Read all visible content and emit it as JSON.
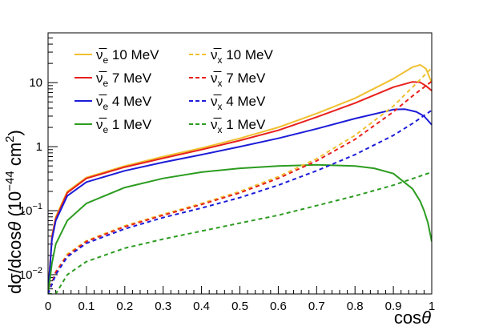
{
  "chart_data": {
    "type": "line",
    "xlabel": "cosθ",
    "ylabel": "dσ/dcosθ (10⁻⁴⁴ cm²)",
    "xlim": [
      0,
      1
    ],
    "ylim": [
      0.005,
      60
    ],
    "y_scale": "log",
    "grid": false,
    "legend_position": "top-left",
    "x_ticks": [
      0,
      0.1,
      0.2,
      0.3,
      0.4,
      0.5,
      0.6,
      0.7,
      0.8,
      0.9,
      1
    ],
    "x_tick_labels": [
      "0",
      "0.1",
      "0.2",
      "0.3",
      "0.4",
      "0.5",
      "0.6",
      "0.7",
      "0.8",
      "0.9",
      "1"
    ],
    "y_major_ticks": [
      0.01,
      0.1,
      1,
      10
    ],
    "series": [
      {
        "name": "ν̅e 10 MeV",
        "color": "#f0c030",
        "style": "solid",
        "x": [
          0.0,
          0.01,
          0.02,
          0.05,
          0.1,
          0.2,
          0.3,
          0.4,
          0.5,
          0.6,
          0.7,
          0.8,
          0.9,
          0.95,
          0.97,
          0.985,
          1.0
        ],
        "y": [
          0.005,
          0.04,
          0.08,
          0.2,
          0.33,
          0.5,
          0.7,
          0.95,
          1.35,
          2.0,
          3.3,
          5.7,
          11.5,
          17.5,
          19.0,
          16.5,
          10.0
        ]
      },
      {
        "name": "ν̅e 7 MeV",
        "color": "#e8201c",
        "style": "solid",
        "x": [
          0.0,
          0.01,
          0.02,
          0.05,
          0.1,
          0.2,
          0.3,
          0.4,
          0.5,
          0.6,
          0.7,
          0.8,
          0.9,
          0.95,
          0.97,
          0.985,
          1.0
        ],
        "y": [
          0.005,
          0.038,
          0.075,
          0.19,
          0.32,
          0.48,
          0.66,
          0.9,
          1.25,
          1.8,
          2.9,
          4.8,
          8.5,
          10.3,
          10.1,
          8.9,
          7.5
        ]
      },
      {
        "name": "ν̅e 4 MeV",
        "color": "#1c1cd8",
        "style": "solid",
        "x": [
          0.0,
          0.01,
          0.02,
          0.05,
          0.1,
          0.2,
          0.3,
          0.4,
          0.5,
          0.6,
          0.7,
          0.8,
          0.9,
          0.93,
          0.96,
          0.98,
          1.0
        ],
        "y": [
          0.005,
          0.035,
          0.07,
          0.17,
          0.28,
          0.42,
          0.57,
          0.75,
          1.0,
          1.35,
          1.9,
          2.75,
          3.8,
          3.85,
          3.5,
          3.0,
          2.2
        ]
      },
      {
        "name": "ν̅e 1 MeV",
        "color": "#2c9c20",
        "style": "solid",
        "x": [
          0.0,
          0.01,
          0.02,
          0.05,
          0.1,
          0.2,
          0.3,
          0.4,
          0.5,
          0.6,
          0.7,
          0.8,
          0.85,
          0.9,
          0.95,
          0.97,
          0.98,
          0.99,
          1.0
        ],
        "y": [
          0.005,
          0.015,
          0.03,
          0.07,
          0.13,
          0.23,
          0.32,
          0.4,
          0.46,
          0.5,
          0.52,
          0.5,
          0.46,
          0.38,
          0.22,
          0.14,
          0.1,
          0.065,
          0.033
        ]
      },
      {
        "name": "ν̅x 10 MeV",
        "color": "#f0c030",
        "style": "dashed",
        "x": [
          0.0,
          0.02,
          0.05,
          0.1,
          0.2,
          0.3,
          0.4,
          0.5,
          0.6,
          0.7,
          0.8,
          0.9,
          0.95,
          1.0
        ],
        "y": [
          0.005,
          0.011,
          0.021,
          0.034,
          0.058,
          0.088,
          0.13,
          0.2,
          0.34,
          0.65,
          1.5,
          4.3,
          8.5,
          17.0
        ]
      },
      {
        "name": "ν̅x 7 MeV",
        "color": "#e8201c",
        "style": "dashed",
        "x": [
          0.0,
          0.02,
          0.05,
          0.1,
          0.2,
          0.3,
          0.4,
          0.5,
          0.6,
          0.7,
          0.8,
          0.9,
          0.95,
          1.0
        ],
        "y": [
          0.005,
          0.011,
          0.02,
          0.033,
          0.056,
          0.085,
          0.125,
          0.19,
          0.32,
          0.6,
          1.3,
          3.5,
          6.2,
          10.5
        ]
      },
      {
        "name": "ν̅x 4 MeV",
        "color": "#1c1cd8",
        "style": "dashed",
        "x": [
          0.0,
          0.02,
          0.05,
          0.1,
          0.2,
          0.3,
          0.4,
          0.5,
          0.6,
          0.7,
          0.8,
          0.9,
          0.95,
          1.0
        ],
        "y": [
          0.005,
          0.01,
          0.019,
          0.031,
          0.052,
          0.078,
          0.11,
          0.16,
          0.25,
          0.42,
          0.75,
          1.5,
          2.3,
          3.7
        ]
      },
      {
        "name": "ν̅x 1 MeV",
        "color": "#2c9c20",
        "style": "dashed",
        "x": [
          0.0,
          0.02,
          0.05,
          0.1,
          0.2,
          0.3,
          0.4,
          0.5,
          0.6,
          0.7,
          0.8,
          0.9,
          1.0
        ],
        "y": [
          0.003,
          0.005,
          0.01,
          0.016,
          0.026,
          0.036,
          0.048,
          0.064,
          0.085,
          0.12,
          0.17,
          0.25,
          0.4
        ]
      }
    ]
  },
  "legend": {
    "entries": [
      {
        "sym": "ν̅",
        "sub": "e",
        "rest": " 10 MeV"
      },
      {
        "sym": "ν̅",
        "sub": "x",
        "rest": " 10 MeV"
      },
      {
        "sym": "ν̅",
        "sub": "e",
        "rest": " 7 MeV"
      },
      {
        "sym": "ν̅",
        "sub": "x",
        "rest": " 7 MeV"
      },
      {
        "sym": "ν̅",
        "sub": "e",
        "rest": " 4 MeV"
      },
      {
        "sym": "ν̅",
        "sub": "x",
        "rest": " 4 MeV"
      },
      {
        "sym": "ν̅",
        "sub": "e",
        "rest": " 1 MeV"
      },
      {
        "sym": "ν̅",
        "sub": "x",
        "rest": " 1 MeV"
      }
    ]
  },
  "ytick_parts": [
    {
      "base": "10",
      "exp": "−2"
    },
    {
      "base": "10",
      "exp": "−1"
    },
    {
      "base": "1",
      "exp": ""
    },
    {
      "base": "10",
      "exp": ""
    }
  ],
  "ylabel_parts": {
    "pre": "dσ/dcos",
    "theta": "θ",
    "mid": " (10",
    "exp": "−44",
    "mid2": " cm",
    "exp2": "2",
    "post": ")"
  },
  "xlabel_parts": {
    "pre": "cos",
    "theta": "θ"
  }
}
